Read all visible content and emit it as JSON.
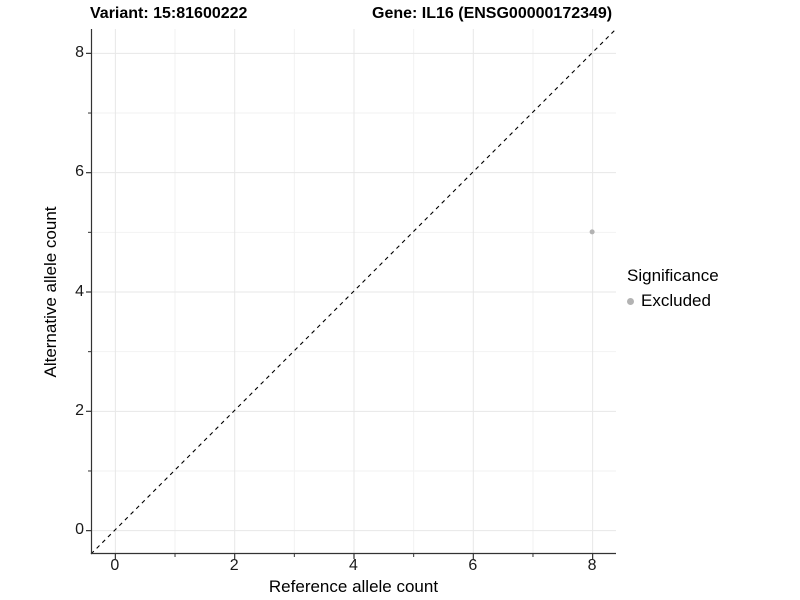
{
  "titles": {
    "variant": "Variant: 15:81600222",
    "gene": "Gene: IL16 (ENSG00000172349)"
  },
  "axes": {
    "x_label": "Reference allele count",
    "y_label": "Alternative allele count"
  },
  "legend": {
    "title": "Significance",
    "items": [
      {
        "label": "Excluded",
        "color": "#b3b3b3"
      }
    ]
  },
  "colors": {
    "background": "#ffffff",
    "axis": "#333333",
    "grid_major": "#e7e7e7",
    "grid_minor": "#f2f2f2",
    "reference_line": "#000000",
    "excluded_point": "#b3b3b3",
    "text": "#000000"
  },
  "chart_data": {
    "type": "scatter",
    "title": "Variant: 15:81600222    Gene: IL16 (ENSG00000172349)",
    "xlabel": "Reference allele count",
    "ylabel": "Alternative allele count",
    "xlim": [
      -0.4,
      8.4
    ],
    "ylim": [
      -0.4,
      8.4
    ],
    "x_ticks": [
      0,
      2,
      4,
      6,
      8
    ],
    "y_ticks": [
      0,
      2,
      4,
      6,
      8
    ],
    "x_minor_ticks": [
      1,
      3,
      5,
      7
    ],
    "y_minor_ticks": [
      1,
      3,
      5,
      7
    ],
    "grid": "major-and-minor",
    "legend_position": "right",
    "series": [
      {
        "name": "Excluded",
        "color": "#b3b3b3",
        "points": [
          {
            "x": 8,
            "y": 5
          }
        ]
      }
    ],
    "reference_line": {
      "slope": 1,
      "intercept": 0,
      "style": "dashed",
      "color": "#000000"
    }
  }
}
